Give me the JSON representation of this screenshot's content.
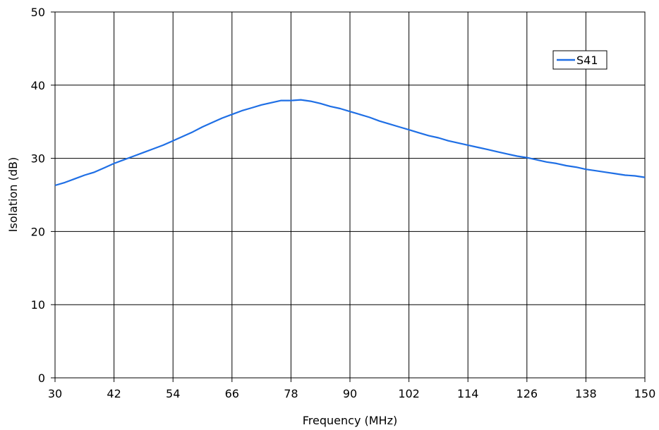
{
  "chart_data": {
    "type": "line",
    "title": "",
    "xlabel": "Frequency (MHz)",
    "ylabel": "Isolation (dB)",
    "xlim": [
      30,
      150
    ],
    "ylim": [
      0,
      50
    ],
    "x_ticks": [
      30,
      42,
      54,
      66,
      78,
      90,
      102,
      114,
      126,
      138,
      150
    ],
    "x_tick_labels": [
      "30",
      "42",
      "54",
      "66",
      "78",
      "90",
      "102",
      "114",
      "126",
      "138",
      "150"
    ],
    "y_ticks": [
      0,
      10,
      20,
      30,
      40,
      50
    ],
    "y_tick_labels": [
      "0",
      "10",
      "20",
      "30",
      "40",
      "50"
    ],
    "grid": true,
    "legend": {
      "placement": "top-right",
      "entries": [
        "S41"
      ]
    },
    "series": [
      {
        "name": "S41",
        "color": "#1F6FE5",
        "x": [
          30,
          32,
          34,
          36,
          38,
          40,
          42,
          44,
          46,
          48,
          50,
          52,
          54,
          56,
          58,
          60,
          62,
          64,
          66,
          68,
          70,
          72,
          74,
          76,
          78,
          80,
          82,
          84,
          86,
          88,
          90,
          92,
          94,
          96,
          98,
          100,
          102,
          104,
          106,
          108,
          110,
          112,
          114,
          116,
          118,
          120,
          122,
          124,
          126,
          128,
          130,
          132,
          134,
          136,
          138,
          140,
          142,
          144,
          146,
          148,
          150
        ],
        "values": [
          26.3,
          26.7,
          27.2,
          27.7,
          28.1,
          28.7,
          29.3,
          29.8,
          30.3,
          30.8,
          31.3,
          31.8,
          32.4,
          33.0,
          33.6,
          34.3,
          34.9,
          35.5,
          36.0,
          36.5,
          36.9,
          37.3,
          37.6,
          37.9,
          37.9,
          38.0,
          37.8,
          37.5,
          37.1,
          36.8,
          36.4,
          36.0,
          35.6,
          35.1,
          34.7,
          34.3,
          33.9,
          33.5,
          33.1,
          32.8,
          32.4,
          32.1,
          31.8,
          31.5,
          31.2,
          30.9,
          30.6,
          30.3,
          30.1,
          29.8,
          29.5,
          29.3,
          29.0,
          28.8,
          28.5,
          28.3,
          28.1,
          27.9,
          27.7,
          27.6,
          27.4
        ]
      }
    ]
  }
}
